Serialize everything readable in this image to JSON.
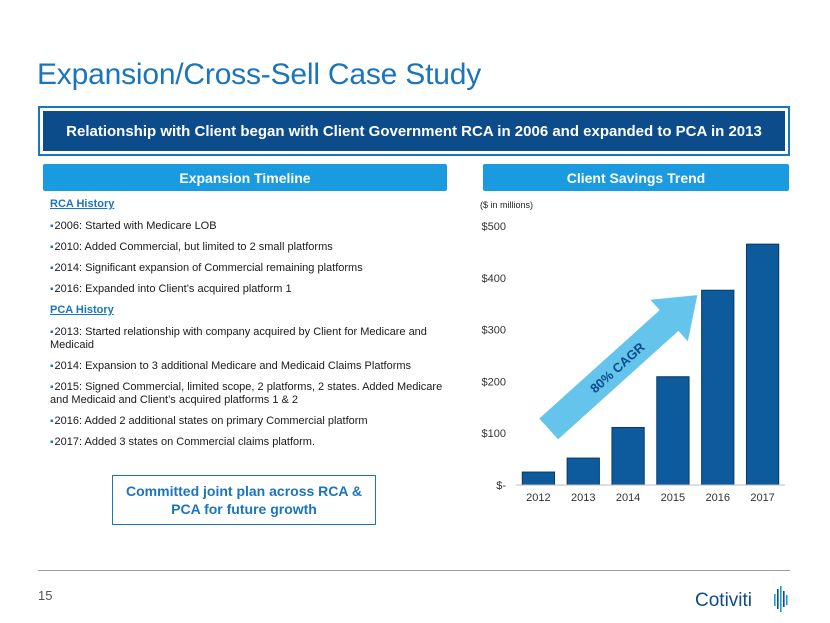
{
  "slide": {
    "title": "Expansion/Cross-Sell Case Study",
    "banner": "Relationship with Client began with Client Government RCA in 2006 and expanded to PCA in 2013",
    "page_number": "15"
  },
  "timeline": {
    "header": "Expansion Timeline",
    "rca_title": "RCA History",
    "rca_items": [
      "2006: Started with Medicare LOB",
      "2010: Added Commercial, but limited to 2 small platforms",
      "2014: Significant expansion of Commercial remaining platforms",
      "2016: Expanded into Client’s acquired platform 1"
    ],
    "pca_title": "PCA History",
    "pca_items": [
      "2013: Started relationship with company acquired by Client for Medicare and Medicaid",
      "2014: Expansion to 3 additional Medicare and Medicaid Claims Platforms",
      "2015: Signed Commercial, limited scope, 2 platforms, 2 states. Added Medicare and Medicaid and Client’s acquired platforms 1 & 2",
      "2016: Added 2 additional states on primary Commercial platform",
      "2017: Added 3 states on Commercial claims platform."
    ],
    "plan_box": "Committed joint plan across RCA & PCA for future growth"
  },
  "savings": {
    "header": "Client Savings Trend",
    "arrow_label": "80% CAGR"
  },
  "logo": {
    "text": "Cotiviti"
  },
  "colors": {
    "primary": "#1b75bc",
    "navy": "#0c4c8a",
    "header": "#1a9be0",
    "bar": "#0d5a9c",
    "arrow": "#5cc1eb"
  },
  "chart_data": {
    "type": "bar",
    "title": "",
    "ylabel": "($ in millions)",
    "xlabel": "",
    "categories": [
      "2012",
      "2013",
      "2014",
      "2015",
      "2016",
      "2017"
    ],
    "values": [
      25,
      52,
      111,
      209,
      376,
      465
    ],
    "ylim": [
      0,
      500
    ],
    "yticks": [
      0,
      100,
      200,
      300,
      400,
      500
    ],
    "ytick_labels": [
      "$-",
      "$100",
      "$200",
      "$300",
      "$400",
      "$500"
    ],
    "grid": false
  }
}
